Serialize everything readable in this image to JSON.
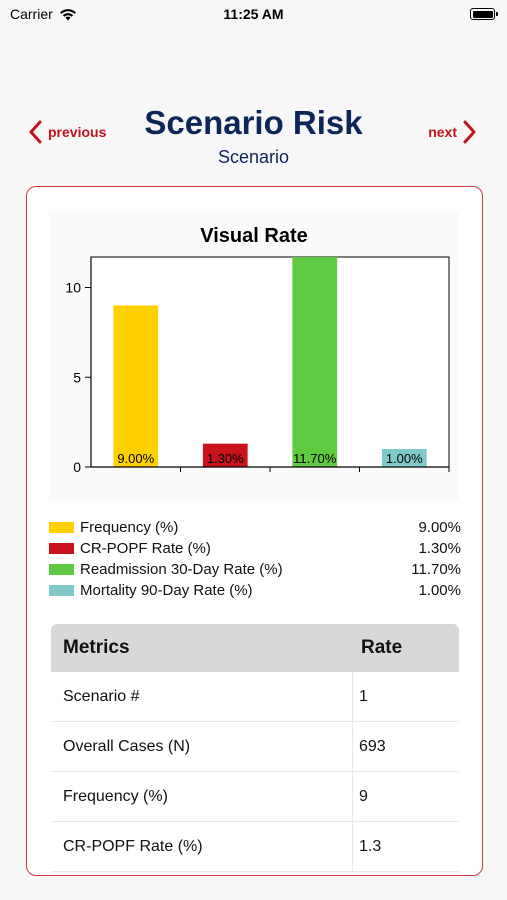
{
  "status_bar": {
    "carrier": "Carrier",
    "time": "11:25 AM"
  },
  "nav": {
    "previous_label": "previous",
    "next_label": "next",
    "title": "Scenario Risk",
    "subtitle": "Scenario"
  },
  "colors": {
    "accent_red": "#c0131c",
    "title_navy": "#0e2557",
    "card_border": "#cf3a3f"
  },
  "chart_data": {
    "type": "bar",
    "title": "Visual Rate",
    "categories": [
      "Frequency (%)",
      "CR-POPF Rate (%)",
      "Readmission 30-Day Rate (%)",
      "Mortality 90-Day Rate (%)"
    ],
    "values": [
      9.0,
      1.3,
      11.7,
      1.0
    ],
    "value_labels": [
      "9.00%",
      "1.30%",
      "11.70%",
      "1.00%"
    ],
    "colors": [
      "#ffd000",
      "#c8131c",
      "#5fc941",
      "#7fcac9"
    ],
    "ylim": [
      0,
      11.7
    ],
    "yticks": [
      0,
      5,
      10
    ],
    "xlabel": "",
    "ylabel": "",
    "legend": "bottom"
  },
  "legend": [
    {
      "label": "Frequency (%)",
      "value": "9.00%",
      "color": "#ffd000"
    },
    {
      "label": "CR-POPF Rate (%)",
      "value": "1.30%",
      "color": "#c8131c"
    },
    {
      "label": "Readmission 30-Day Rate (%)",
      "value": "11.70%",
      "color": "#5fc941"
    },
    {
      "label": "Mortality 90-Day Rate (%)",
      "value": "1.00%",
      "color": "#7fcac9"
    }
  ],
  "metrics": {
    "header_metric": "Metrics",
    "header_rate": "Rate",
    "rows": [
      {
        "metric": "Scenario #",
        "rate": "1"
      },
      {
        "metric": "Overall Cases (N)",
        "rate": "693"
      },
      {
        "metric": "Frequency (%)",
        "rate": "9"
      },
      {
        "metric": "CR-POPF Rate (%)",
        "rate": "1.3"
      }
    ]
  }
}
